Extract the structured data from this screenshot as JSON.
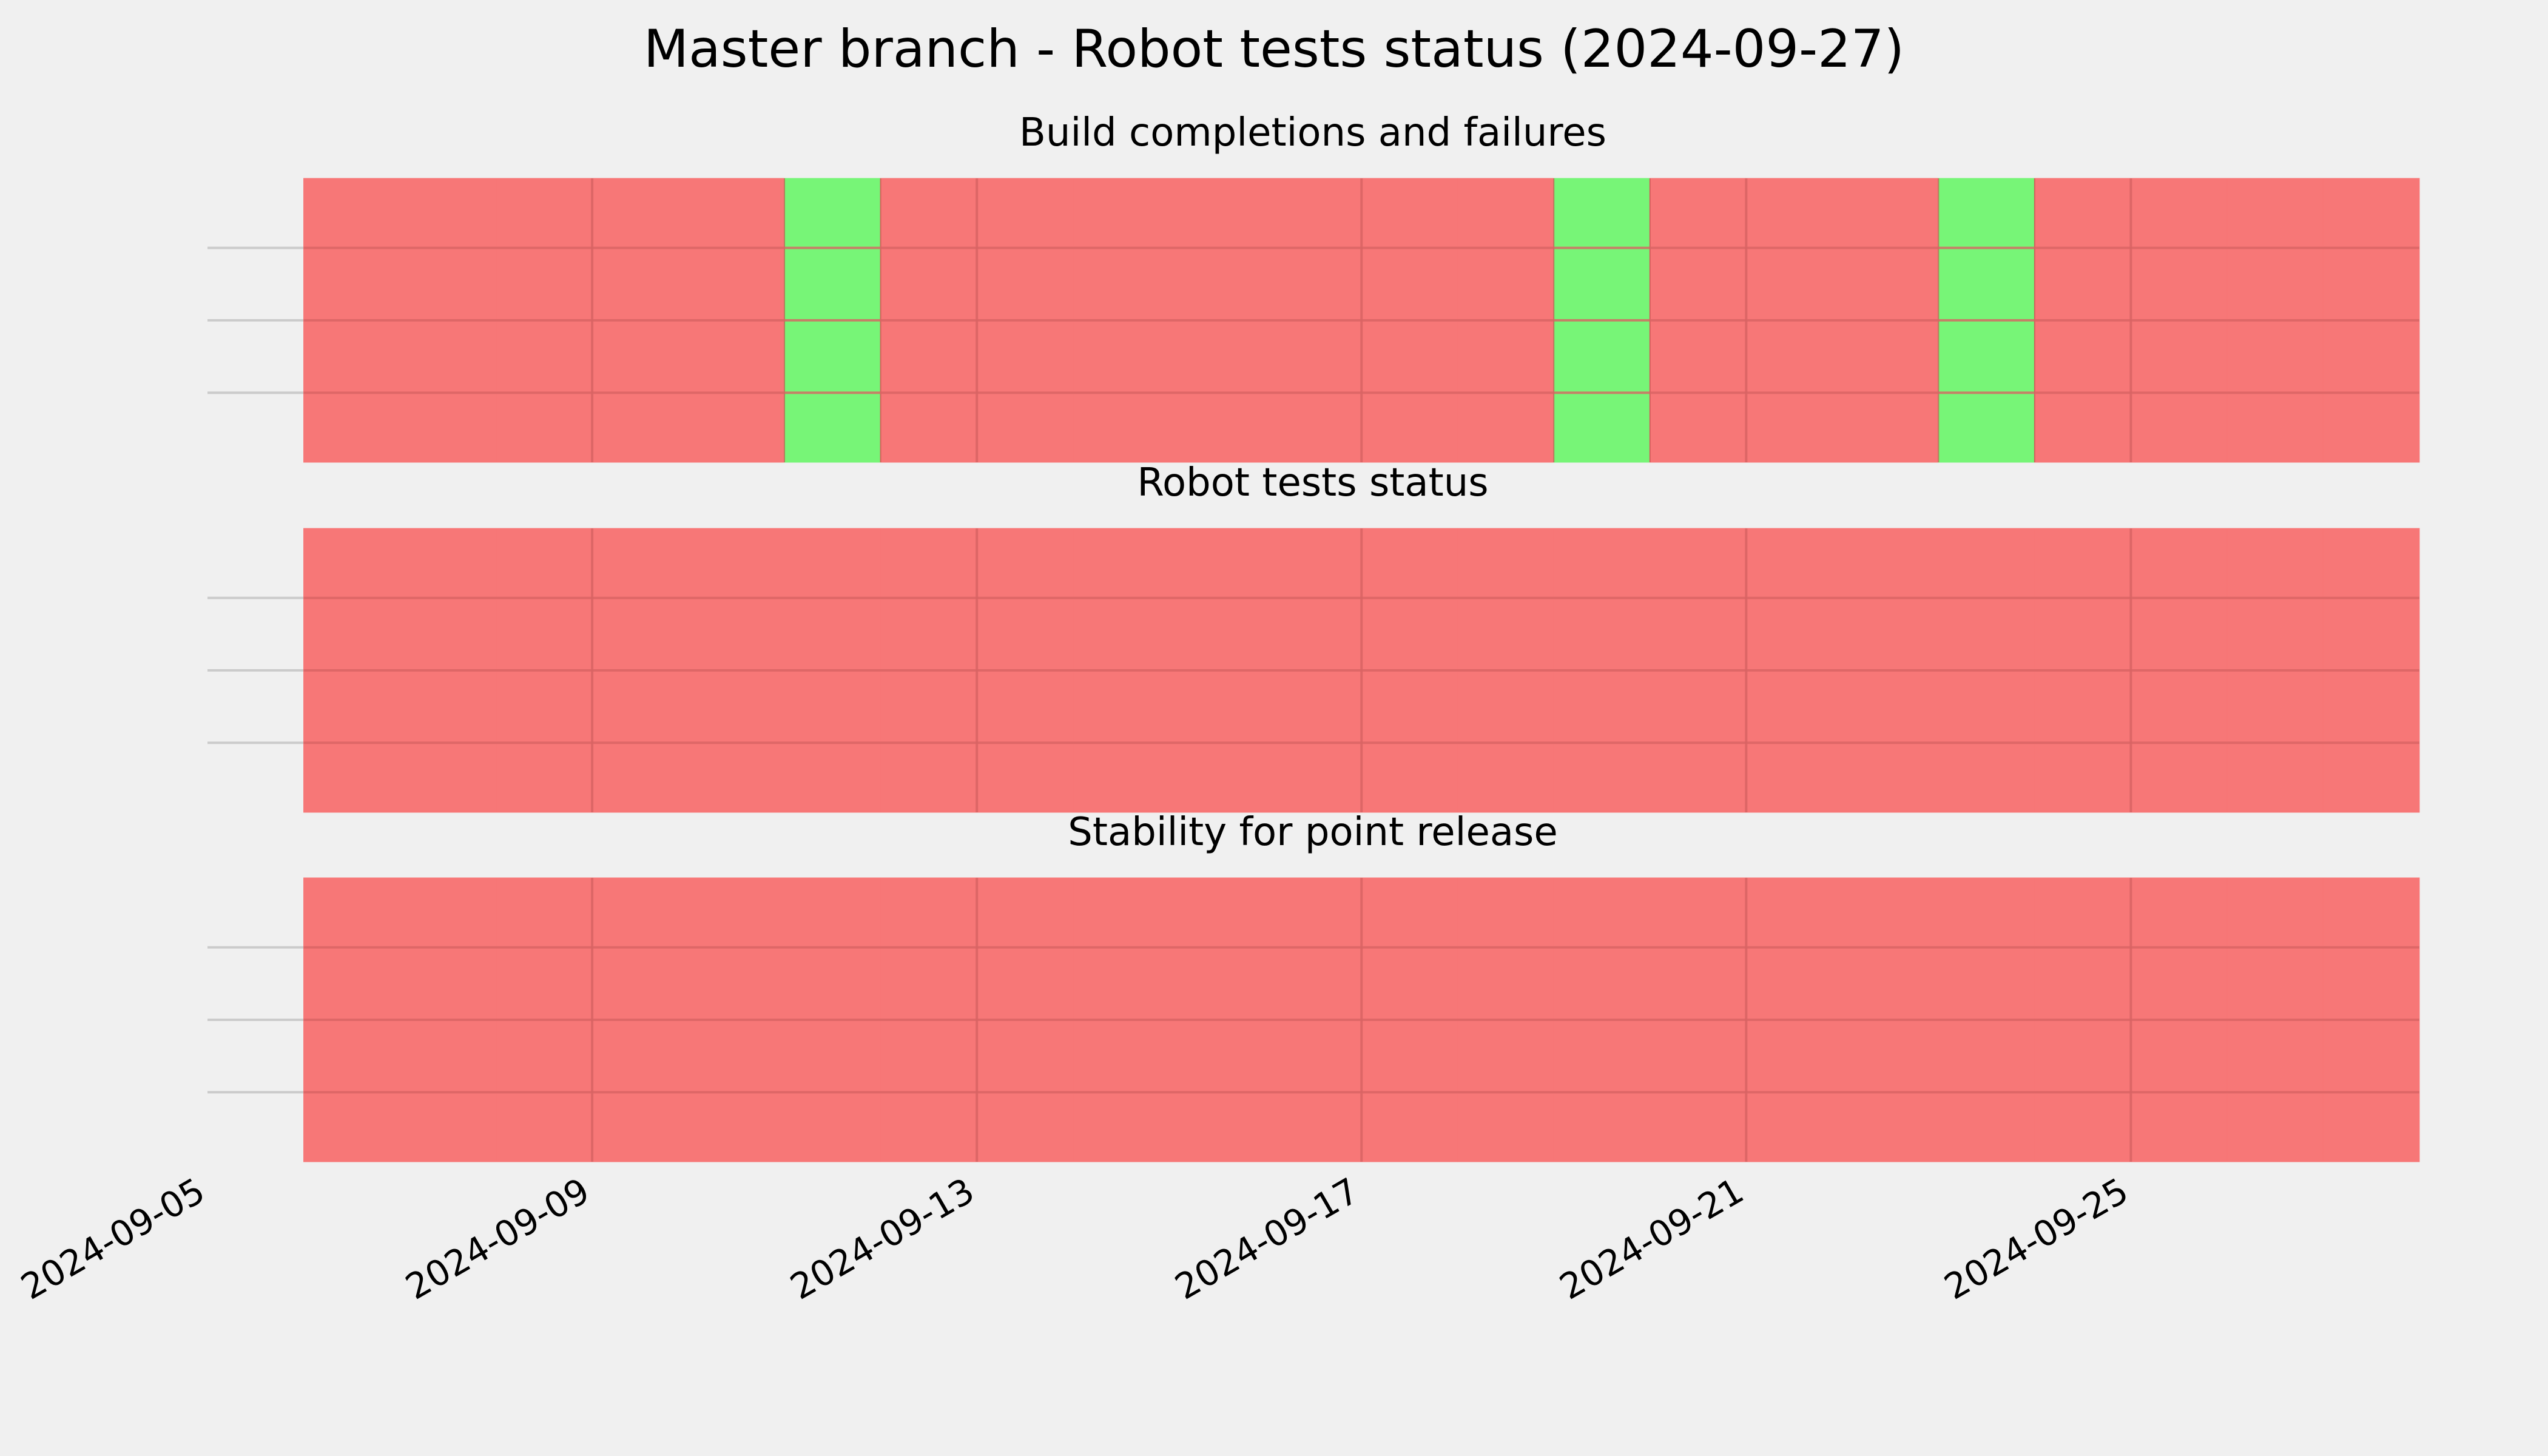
{
  "chart_data": {
    "type": "heatmap",
    "title": "Master branch - Robot tests status (2024-09-27)",
    "x_axis": {
      "type": "date",
      "range": [
        "2024-09-05",
        "2024-09-28"
      ],
      "ticks": [
        "2024-09-05",
        "2024-09-09",
        "2024-09-13",
        "2024-09-17",
        "2024-09-21",
        "2024-09-25"
      ],
      "tick_rotation_deg": -30
    },
    "grid": true,
    "colors": {
      "pass": "#77f577",
      "fail": "#f77777",
      "background": "#f0f0f0",
      "grid": "#cbcbcb"
    },
    "panels": [
      {
        "title": "Build completions and failures",
        "days": [
          {
            "date": "2024-09-06",
            "status": "fail"
          },
          {
            "date": "2024-09-07",
            "status": "fail"
          },
          {
            "date": "2024-09-08",
            "status": "fail"
          },
          {
            "date": "2024-09-09",
            "status": "fail"
          },
          {
            "date": "2024-09-10",
            "status": "fail"
          },
          {
            "date": "2024-09-11",
            "status": "pass"
          },
          {
            "date": "2024-09-12",
            "status": "fail"
          },
          {
            "date": "2024-09-13",
            "status": "fail"
          },
          {
            "date": "2024-09-14",
            "status": "fail"
          },
          {
            "date": "2024-09-15",
            "status": "fail"
          },
          {
            "date": "2024-09-16",
            "status": "fail"
          },
          {
            "date": "2024-09-17",
            "status": "fail"
          },
          {
            "date": "2024-09-18",
            "status": "fail"
          },
          {
            "date": "2024-09-19",
            "status": "pass"
          },
          {
            "date": "2024-09-20",
            "status": "fail"
          },
          {
            "date": "2024-09-21",
            "status": "fail"
          },
          {
            "date": "2024-09-22",
            "status": "fail"
          },
          {
            "date": "2024-09-23",
            "status": "pass"
          },
          {
            "date": "2024-09-24",
            "status": "fail"
          },
          {
            "date": "2024-09-25",
            "status": "fail"
          },
          {
            "date": "2024-09-26",
            "status": "fail"
          },
          {
            "date": "2024-09-27",
            "status": "fail"
          }
        ]
      },
      {
        "title": "Robot tests status",
        "days": [
          {
            "date": "2024-09-06",
            "status": "fail"
          },
          {
            "date": "2024-09-07",
            "status": "fail"
          },
          {
            "date": "2024-09-08",
            "status": "fail"
          },
          {
            "date": "2024-09-09",
            "status": "fail"
          },
          {
            "date": "2024-09-10",
            "status": "fail"
          },
          {
            "date": "2024-09-11",
            "status": "fail"
          },
          {
            "date": "2024-09-12",
            "status": "fail"
          },
          {
            "date": "2024-09-13",
            "status": "fail"
          },
          {
            "date": "2024-09-14",
            "status": "fail"
          },
          {
            "date": "2024-09-15",
            "status": "fail"
          },
          {
            "date": "2024-09-16",
            "status": "fail"
          },
          {
            "date": "2024-09-17",
            "status": "fail"
          },
          {
            "date": "2024-09-18",
            "status": "fail"
          },
          {
            "date": "2024-09-19",
            "status": "fail"
          },
          {
            "date": "2024-09-20",
            "status": "fail"
          },
          {
            "date": "2024-09-21",
            "status": "fail"
          },
          {
            "date": "2024-09-22",
            "status": "fail"
          },
          {
            "date": "2024-09-23",
            "status": "fail"
          },
          {
            "date": "2024-09-24",
            "status": "fail"
          },
          {
            "date": "2024-09-25",
            "status": "fail"
          },
          {
            "date": "2024-09-26",
            "status": "fail"
          },
          {
            "date": "2024-09-27",
            "status": "fail"
          }
        ]
      },
      {
        "title": "Stability for point release",
        "days": [
          {
            "date": "2024-09-06",
            "status": "fail"
          },
          {
            "date": "2024-09-07",
            "status": "fail"
          },
          {
            "date": "2024-09-08",
            "status": "fail"
          },
          {
            "date": "2024-09-09",
            "status": "fail"
          },
          {
            "date": "2024-09-10",
            "status": "fail"
          },
          {
            "date": "2024-09-11",
            "status": "fail"
          },
          {
            "date": "2024-09-12",
            "status": "fail"
          },
          {
            "date": "2024-09-13",
            "status": "fail"
          },
          {
            "date": "2024-09-14",
            "status": "fail"
          },
          {
            "date": "2024-09-15",
            "status": "fail"
          },
          {
            "date": "2024-09-16",
            "status": "fail"
          },
          {
            "date": "2024-09-17",
            "status": "fail"
          },
          {
            "date": "2024-09-18",
            "status": "fail"
          },
          {
            "date": "2024-09-19",
            "status": "fail"
          },
          {
            "date": "2024-09-20",
            "status": "fail"
          },
          {
            "date": "2024-09-21",
            "status": "fail"
          },
          {
            "date": "2024-09-22",
            "status": "fail"
          },
          {
            "date": "2024-09-23",
            "status": "fail"
          },
          {
            "date": "2024-09-24",
            "status": "fail"
          },
          {
            "date": "2024-09-25",
            "status": "fail"
          },
          {
            "date": "2024-09-26",
            "status": "fail"
          },
          {
            "date": "2024-09-27",
            "status": "fail"
          }
        ]
      }
    ]
  }
}
